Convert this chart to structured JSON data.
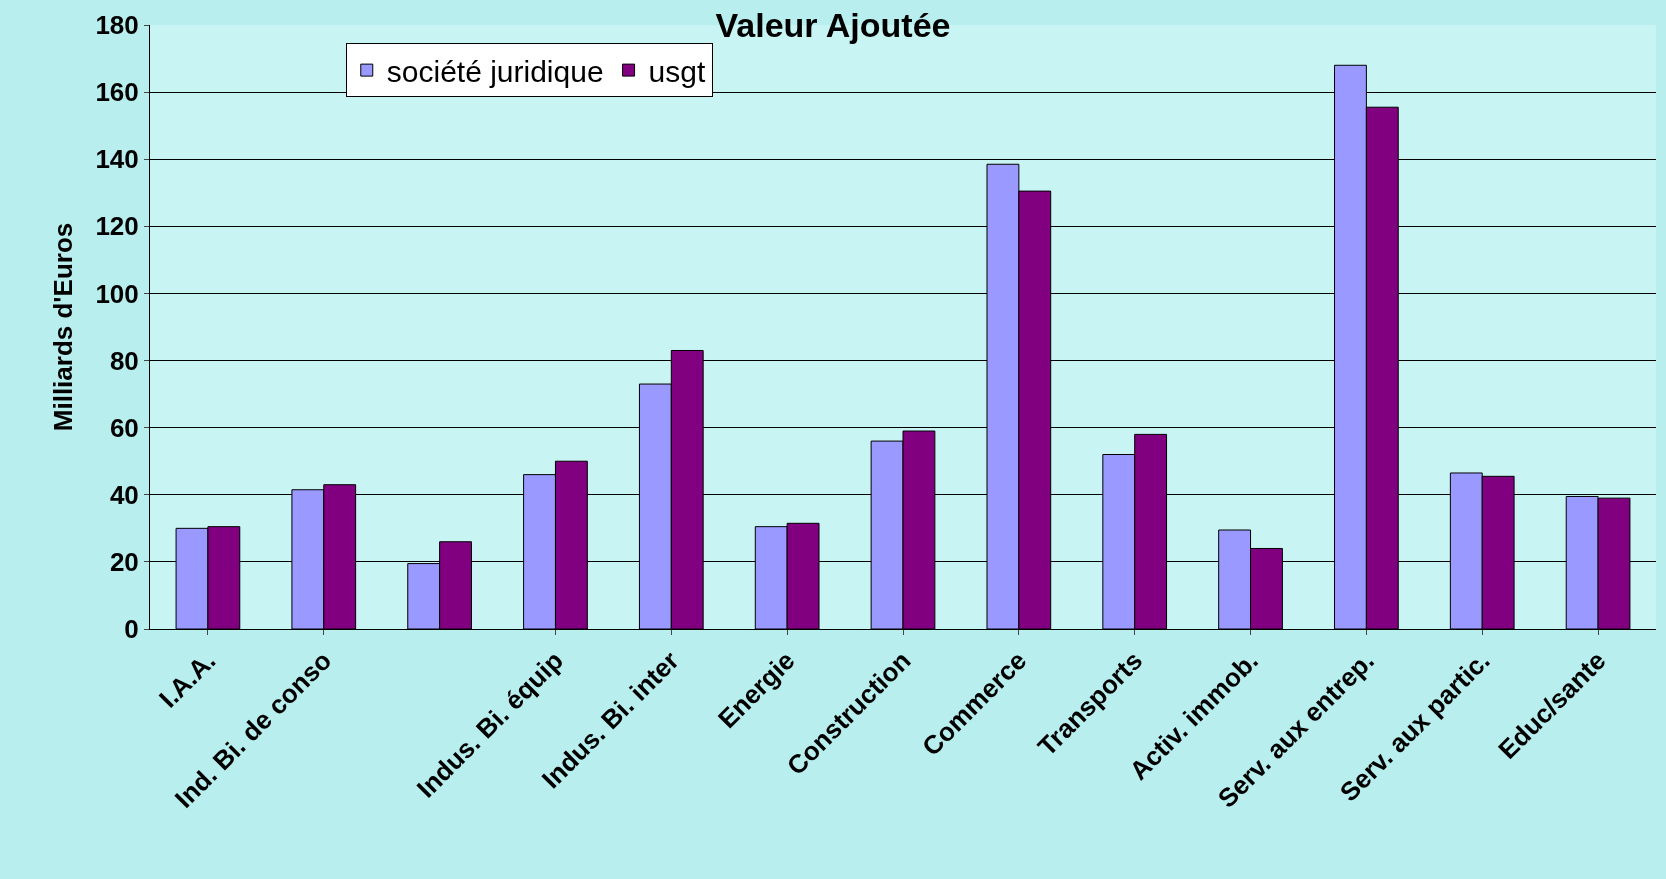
{
  "chart_data": {
    "type": "bar",
    "title": "Valeur Ajoutée",
    "ylabel": "Milliards d'Euros",
    "categories": [
      "I.A.A.",
      "Ind. Bi. de conso",
      null,
      "Indus. Bi. équip",
      "Indus. Bi. inter",
      "Energie",
      "Construction",
      "Commerce",
      "Transports",
      "Activ. immob.",
      "Serv. aux entrep.",
      "Serv. aux partic.",
      "Educ/sante"
    ],
    "series": [
      {
        "name": "société juridique",
        "color": "#9999ff",
        "values": [
          30,
          41.5,
          19.5,
          46,
          73,
          30.5,
          56,
          138.5,
          52,
          29.5,
          168,
          46.5,
          39.5
        ]
      },
      {
        "name": "usgt",
        "color": "#800080",
        "values": [
          30.5,
          43,
          26,
          50,
          83,
          31.5,
          59,
          130.5,
          58,
          24,
          155.5,
          45.5,
          39
        ]
      }
    ],
    "ylim": [
      0,
      180
    ],
    "yticks": [
      0,
      20,
      40,
      60,
      80,
      100,
      120,
      140,
      160,
      180
    ],
    "grid": "y",
    "legend": "top left"
  }
}
